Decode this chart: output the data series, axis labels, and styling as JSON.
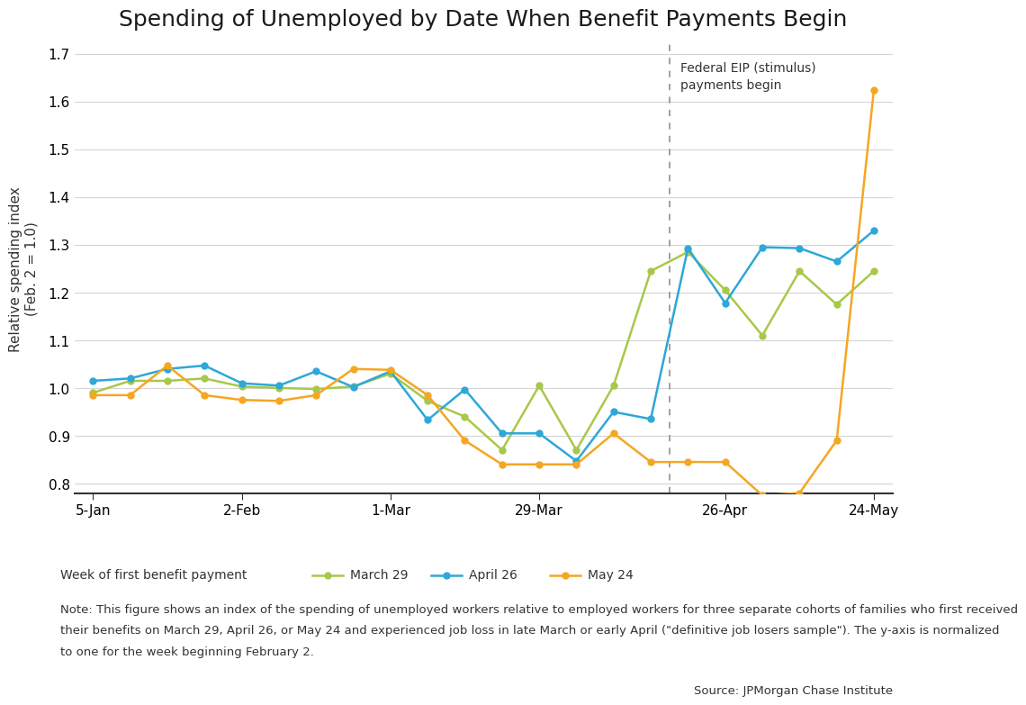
{
  "title": "Spending of Unemployed by Date When Benefit Payments Begin",
  "ylabel": "Relative spending index\n(Feb. 2 = 1.0)",
  "xlabel": "",
  "ylim": [
    0.78,
    1.72
  ],
  "yticks": [
    0.8,
    0.9,
    1.0,
    1.1,
    1.2,
    1.3,
    1.4,
    1.5,
    1.6,
    1.7
  ],
  "x_labels": [
    "5-Jan",
    "2-Feb",
    "1-Mar",
    "29-Mar",
    "26-Apr",
    "24-May"
  ],
  "x_positions": [
    0,
    4,
    8,
    12,
    17,
    21
  ],
  "vline_x": 15.5,
  "vline_label": "Federal EIP (stimulus)\npayments begin",
  "series": {
    "march29": {
      "label": "March 29",
      "color": "#a8c84a",
      "x": [
        0,
        1,
        2,
        3,
        4,
        5,
        6,
        7,
        8,
        9,
        10,
        11,
        12,
        13,
        14,
        15,
        16,
        17,
        18,
        19,
        20,
        21
      ],
      "y": [
        0.99,
        1.015,
        1.015,
        1.02,
        1.003,
        1.0,
        0.998,
        1.003,
        1.03,
        0.973,
        0.94,
        0.87,
        1.005,
        0.87,
        1.005,
        1.245,
        1.285,
        1.205,
        1.11,
        1.245,
        1.175,
        1.245
      ]
    },
    "april26": {
      "label": "April 26",
      "color": "#2da8d8",
      "x": [
        0,
        1,
        2,
        3,
        4,
        5,
        6,
        7,
        8,
        9,
        10,
        11,
        12,
        13,
        14,
        15,
        16,
        17,
        18,
        19,
        20,
        21
      ],
      "y": [
        1.015,
        1.02,
        1.04,
        1.047,
        1.01,
        1.005,
        1.035,
        1.002,
        1.035,
        0.933,
        0.997,
        0.905,
        0.905,
        0.847,
        0.95,
        0.935,
        1.293,
        1.178,
        1.295,
        1.293,
        1.265,
        1.33
      ]
    },
    "may24": {
      "label": "May 24",
      "color": "#f5a623",
      "x": [
        0,
        1,
        2,
        3,
        4,
        5,
        6,
        7,
        8,
        9,
        10,
        11,
        12,
        13,
        14,
        15,
        16,
        17,
        18,
        19,
        20,
        21
      ],
      "y": [
        0.985,
        0.985,
        1.047,
        0.985,
        0.975,
        0.973,
        0.985,
        1.04,
        1.038,
        0.985,
        0.89,
        0.84,
        0.84,
        0.84,
        0.905,
        0.845,
        0.845,
        0.845,
        0.775,
        0.78,
        0.89,
        1.625
      ]
    }
  },
  "legend_prefix": "Week of first benefit payment",
  "note_line1": "Note: This figure shows an index of the spending of unemployed workers relative to employed workers for three separate cohorts of families who first received",
  "note_line2": "their benefits on March 29, April 26, or May 24 and experienced job loss in late March or early April (\"definitive job losers sample\"). The y-axis is normalized",
  "note_line3": "to one for the week beginning February 2.",
  "source_text": "Source: JPMorgan Chase Institute",
  "title_fontsize": 18,
  "axis_fontsize": 11,
  "tick_fontsize": 11,
  "note_fontsize": 9.5,
  "background_color": "#ffffff",
  "grid_color": "#d5d5d5"
}
